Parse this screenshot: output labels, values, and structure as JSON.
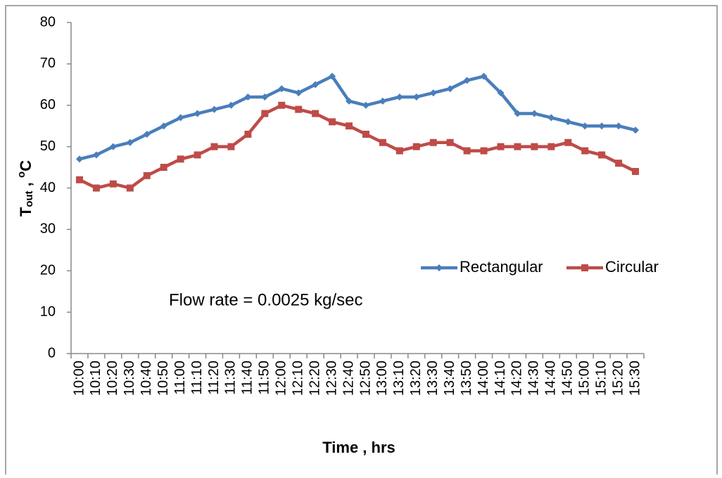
{
  "chart_data": {
    "type": "line",
    "y_label": [
      "T",
      "out",
      " , ",
      "o",
      "C"
    ],
    "x_label": "Time , hrs",
    "annotation": "Flow rate = 0.0025 kg/sec",
    "categories": [
      "10:00",
      "10:10",
      "10:20",
      "10:30",
      "10:40",
      "10:50",
      "11:00",
      "11:10",
      "11:20",
      "11:30",
      "11:40",
      "11:50",
      "12:00",
      "12:10",
      "12:20",
      "12:30",
      "12:40",
      "12:50",
      "13:00",
      "13:10",
      "13:20",
      "13:30",
      "13:40",
      "13:50",
      "14:00",
      "14:10",
      "14:20",
      "14:30",
      "14:40",
      "14:50",
      "15:00",
      "15:10",
      "15:20",
      "15:30"
    ],
    "series": [
      {
        "name": "Rectangular",
        "color": "#4a7ebb",
        "marker": "diamond",
        "values": [
          47,
          48,
          50,
          51,
          53,
          55,
          57,
          58,
          59,
          60,
          62,
          62,
          64,
          63,
          65,
          67,
          61,
          60,
          61,
          62,
          62,
          63,
          64,
          66,
          67,
          63,
          58,
          58,
          57,
          56,
          55,
          55,
          55,
          54
        ]
      },
      {
        "name": "Circular",
        "color": "#be4b48",
        "marker": "square",
        "values": [
          42,
          40,
          41,
          40,
          43,
          45,
          47,
          48,
          50,
          50,
          53,
          58,
          60,
          59,
          58,
          56,
          55,
          53,
          51,
          49,
          50,
          51,
          51,
          49,
          49,
          50,
          50,
          50,
          50,
          51,
          49,
          48,
          46,
          44
        ]
      }
    ],
    "ylim": [
      0,
      80
    ],
    "yticks": [
      0,
      10,
      20,
      30,
      40,
      50,
      60,
      70,
      80
    ],
    "grid": false
  }
}
